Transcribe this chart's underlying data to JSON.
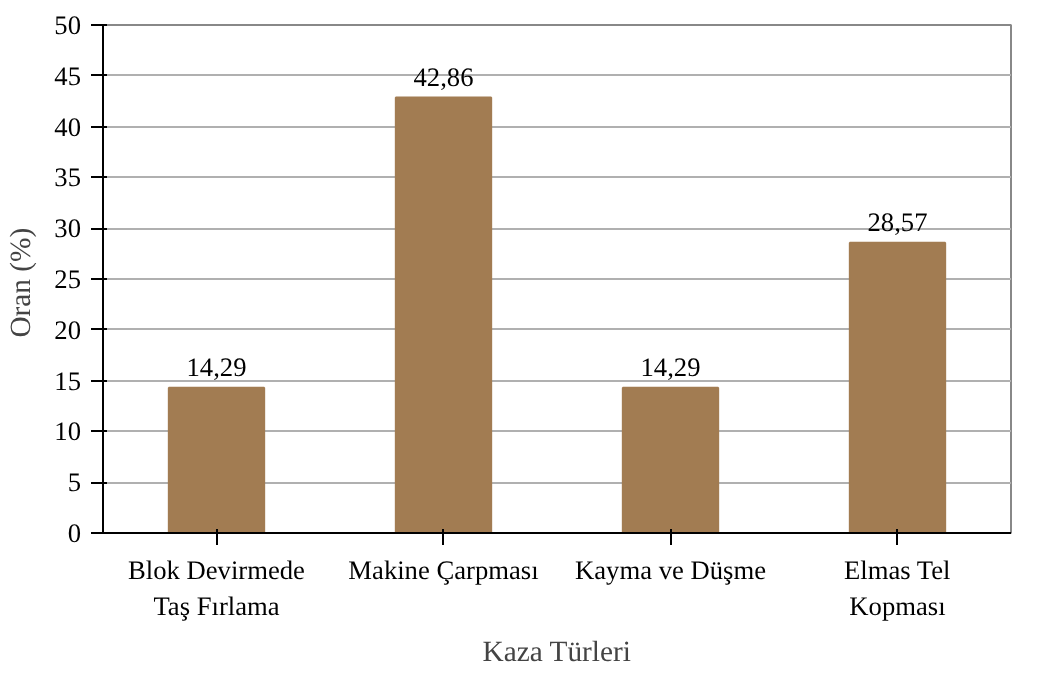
{
  "chart_data": {
    "type": "bar",
    "xlabel": "Kaza Türleri",
    "ylabel": "Oran  (%)",
    "categories": [
      "Blok Devirmede\nTaş Fırlama",
      "Makine Çarpması",
      "Kayma ve Düşme",
      "Elmas Tel\nKopması"
    ],
    "values": [
      14.29,
      42.86,
      14.29,
      28.57
    ],
    "color": "#a27c52",
    "value_labels": [
      "14,29",
      "42,86",
      "14,29",
      "28,57"
    ],
    "ylim": [
      0,
      50
    ],
    "yticks": [
      0,
      5,
      10,
      15,
      20,
      25,
      30,
      35,
      40,
      45,
      50
    ],
    "grid": "y"
  }
}
